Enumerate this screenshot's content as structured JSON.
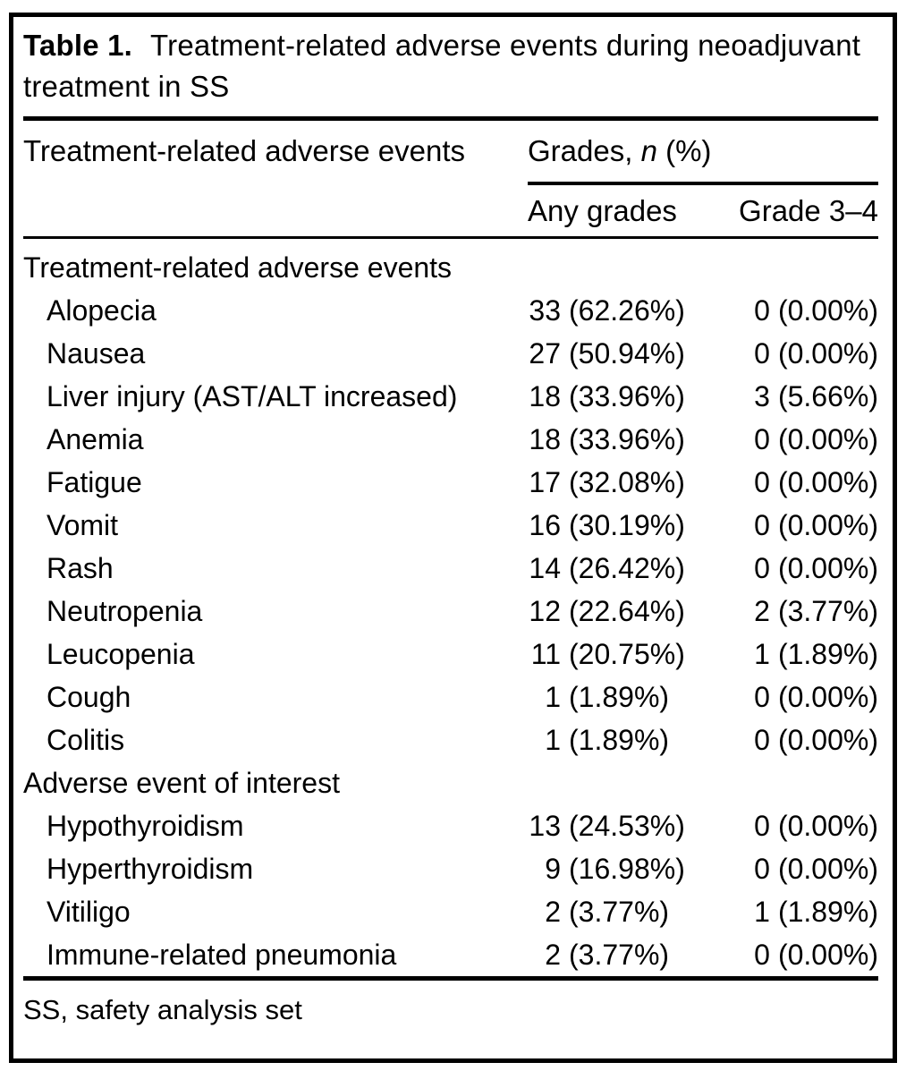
{
  "caption": {
    "label": "Table 1.",
    "line1": "Treatment-related adverse events during neoadjuvant",
    "line2": "treatment in SS"
  },
  "header": {
    "stub": "Treatment-related adverse events",
    "grades_prefix": "Grades,",
    "grades_n": "n",
    "grades_suffix": "(%)",
    "any_grades": "Any grades",
    "grade_3_4": "Grade 3–4"
  },
  "sections": [
    {
      "label": "Treatment-related adverse events",
      "rows": [
        {
          "name": "Alopecia",
          "any_n": "33",
          "any_pct": "(62.26%)",
          "g34_n": "0",
          "g34_pct": "(0.00%)"
        },
        {
          "name": "Nausea",
          "any_n": "27",
          "any_pct": "(50.94%)",
          "g34_n": "0",
          "g34_pct": "(0.00%)"
        },
        {
          "name": "Liver injury (AST/ALT increased)",
          "any_n": "18",
          "any_pct": "(33.96%)",
          "g34_n": "3",
          "g34_pct": "(5.66%)"
        },
        {
          "name": "Anemia",
          "any_n": "18",
          "any_pct": "(33.96%)",
          "g34_n": "0",
          "g34_pct": "(0.00%)"
        },
        {
          "name": "Fatigue",
          "any_n": "17",
          "any_pct": "(32.08%)",
          "g34_n": "0",
          "g34_pct": "(0.00%)"
        },
        {
          "name": "Vomit",
          "any_n": "16",
          "any_pct": "(30.19%)",
          "g34_n": "0",
          "g34_pct": "(0.00%)"
        },
        {
          "name": "Rash",
          "any_n": "14",
          "any_pct": "(26.42%)",
          "g34_n": "0",
          "g34_pct": "(0.00%)"
        },
        {
          "name": "Neutropenia",
          "any_n": "12",
          "any_pct": "(22.64%)",
          "g34_n": "2",
          "g34_pct": "(3.77%)"
        },
        {
          "name": "Leucopenia",
          "any_n": "11",
          "any_pct": "(20.75%)",
          "g34_n": "1",
          "g34_pct": "(1.89%)"
        },
        {
          "name": "Cough",
          "any_n": "1",
          "any_pct": "(1.89%)",
          "g34_n": "0",
          "g34_pct": "(0.00%)"
        },
        {
          "name": "Colitis",
          "any_n": "1",
          "any_pct": "(1.89%)",
          "g34_n": "0",
          "g34_pct": "(0.00%)"
        }
      ]
    },
    {
      "label": "Adverse event of interest",
      "rows": [
        {
          "name": "Hypothyroidism",
          "any_n": "13",
          "any_pct": "(24.53%)",
          "g34_n": "0",
          "g34_pct": "(0.00%)"
        },
        {
          "name": "Hyperthyroidism",
          "any_n": "9",
          "any_pct": "(16.98%)",
          "g34_n": "0",
          "g34_pct": "(0.00%)"
        },
        {
          "name": "Vitiligo",
          "any_n": "2",
          "any_pct": "(3.77%)",
          "g34_n": "1",
          "g34_pct": "(1.89%)"
        },
        {
          "name": "Immune-related pneumonia",
          "any_n": "2",
          "any_pct": "(3.77%)",
          "g34_n": "0",
          "g34_pct": "(0.00%)"
        }
      ]
    }
  ],
  "footnote": "SS, safety analysis set",
  "colors": {
    "text": "#000000",
    "background": "#ffffff",
    "rule": "#000000"
  }
}
